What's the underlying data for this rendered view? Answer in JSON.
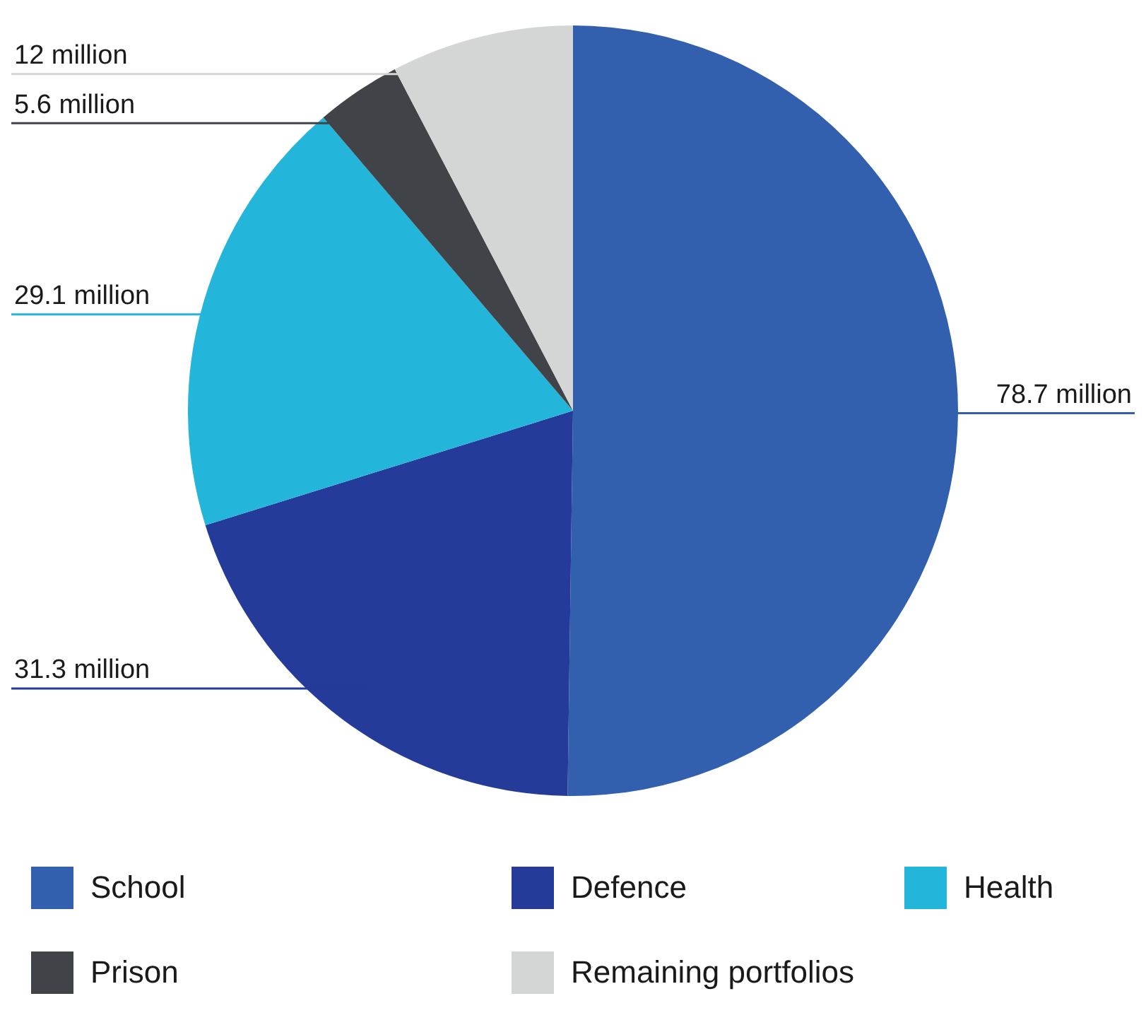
{
  "chart_data": {
    "type": "pie",
    "categories": [
      "School",
      "Defence",
      "Health",
      "Prison",
      "Remaining portfolios"
    ],
    "values": [
      78.7,
      31.3,
      29.1,
      5.6,
      12
    ],
    "colors": [
      "#325fae",
      "#253b9a",
      "#24b5db",
      "#404347",
      "#d4d5d5"
    ],
    "value_labels": [
      "78.7 million",
      "31.3 million",
      "29.1 million",
      "5.6 million",
      "12 million"
    ],
    "legend": "bottom"
  }
}
